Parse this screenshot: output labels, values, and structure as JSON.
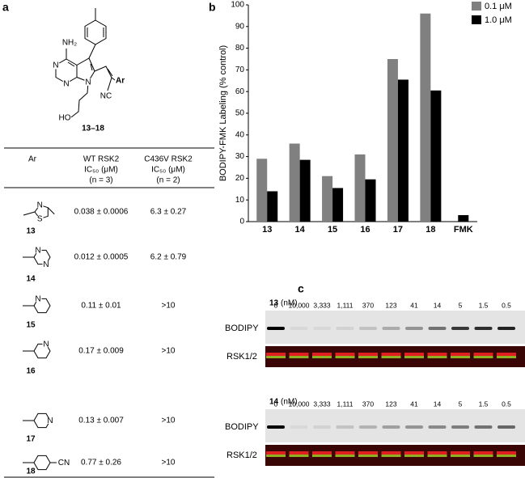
{
  "panel_labels": [
    "a",
    "b",
    "c"
  ],
  "structure": {
    "atoms": [
      "NH₂",
      "N",
      "N",
      "N",
      "HO",
      "NC",
      "Ar"
    ],
    "label": "13–18"
  },
  "table": {
    "header": [
      [
        "Ar"
      ],
      [
        "WT RSK2",
        "IC₅₀ (μM)",
        "(n = 3)"
      ],
      [
        "C436V RSK2",
        "IC₅₀ (μM)",
        "(n = 2)"
      ]
    ],
    "rows": [
      {
        "compound": "13",
        "atoms": [
          "S",
          "N"
        ],
        "wt": "0.038 ± 0.0006",
        "c436v": "6.3 ± 0.27"
      },
      {
        "compound": "14",
        "atoms": [
          "N",
          "N"
        ],
        "wt": "0.012 ± 0.0005",
        "c436v": "6.2 ± 0.79"
      },
      {
        "compound": "15",
        "atoms": [
          "N"
        ],
        "wt": "0.11 ± 0.01",
        "c436v": ">10"
      },
      {
        "compound": "16",
        "atoms": [
          "N"
        ],
        "wt": "0.17 ± 0.009",
        "c436v": ">10"
      },
      {
        "compound": "17",
        "atoms": [
          "N"
        ],
        "wt": "0.13 ± 0.007",
        "c436v": ">10"
      },
      {
        "compound": "18",
        "atoms": [
          "CN"
        ],
        "wt": "0.77 ± 0.26",
        "c436v": ">10"
      }
    ]
  },
  "chart_data": {
    "type": "bar",
    "ylabel": "BODIPY-FMK Labeling (% control)",
    "categories": [
      "13",
      "14",
      "15",
      "16",
      "17",
      "18",
      "FMK"
    ],
    "series": [
      {
        "name": "0.1 μM",
        "color": "#808080",
        "values": [
          29,
          36,
          21,
          31,
          75,
          96,
          null
        ]
      },
      {
        "name": "1.0 μM",
        "color": "#000000",
        "values": [
          14,
          28.5,
          15.5,
          19.5,
          65.5,
          60.5,
          3
        ]
      }
    ],
    "ylim": [
      0,
      100
    ],
    "yticks": [
      0,
      10,
      20,
      30,
      40,
      50,
      60,
      70,
      80,
      90,
      100
    ],
    "legend": "upper right"
  },
  "panel_c": {
    "blots": [
      {
        "compound": "13",
        "unit": "(nM)",
        "lanes": [
          "0",
          "10,000",
          "3,333",
          "1,111",
          "370",
          "123",
          "41",
          "14",
          "5",
          "1.5",
          "0.5"
        ],
        "rows": [
          "BODIPY",
          "RSK1/2"
        ]
      },
      {
        "compound": "14",
        "unit": "(nM)",
        "lanes": [
          "0",
          "10,000",
          "3,333",
          "1,111",
          "370",
          "123",
          "41",
          "14",
          "5",
          "1.5",
          "0.5"
        ],
        "rows": [
          "BODIPY",
          "RSK1/2"
        ]
      }
    ]
  }
}
